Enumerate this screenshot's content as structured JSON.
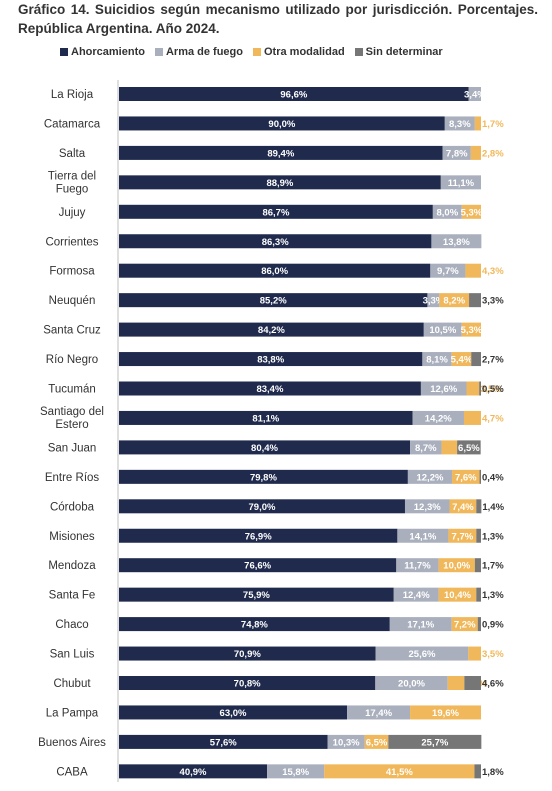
{
  "title": "Gráfico 14. Suicidios según mecanismo utilizado por jurisdicción. Porcentajes. República Argentina. Año 2024.",
  "chart_data": {
    "type": "bar",
    "orientation": "horizontal",
    "stacked": true,
    "title": "Gráfico 14. Suicidios según mecanismo utilizado por jurisdicción. Porcentajes. República Argentina. Año 2024.",
    "xlim": [
      0,
      100
    ],
    "legend_position": "top",
    "categories": [
      "La Rioja",
      "Catamarca",
      "Salta",
      "Tierra del Fuego",
      "Jujuy",
      "Corrientes",
      "Formosa",
      "Neuquén",
      "Santa Cruz",
      "Río Negro",
      "Tucumán",
      "Santiago del Estero",
      "San Juan",
      "Entre Ríos",
      "Córdoba",
      "Misiones",
      "Mendoza",
      "Santa Fe",
      "Chaco",
      "San Luis",
      "Chubut",
      "La Pampa",
      "Buenos Aires",
      "CABA"
    ],
    "category_lines": [
      [
        "La Rioja"
      ],
      [
        "Catamarca"
      ],
      [
        "Salta"
      ],
      [
        "Tierra del",
        "Fuego"
      ],
      [
        "Jujuy"
      ],
      [
        "Corrientes"
      ],
      [
        "Formosa"
      ],
      [
        "Neuquén"
      ],
      [
        "Santa Cruz"
      ],
      [
        "Río Negro"
      ],
      [
        "Tucumán"
      ],
      [
        "Santiago del",
        "Estero"
      ],
      [
        "San Juan"
      ],
      [
        "Entre Ríos"
      ],
      [
        "Córdoba"
      ],
      [
        "Misiones"
      ],
      [
        "Mendoza"
      ],
      [
        "Santa Fe"
      ],
      [
        "Chaco"
      ],
      [
        "San Luis"
      ],
      [
        "Chubut"
      ],
      [
        "La Pampa"
      ],
      [
        "Buenos Aires"
      ],
      [
        "CABA"
      ]
    ],
    "series": [
      {
        "name": "Ahorcamiento",
        "color": "#1f2a4d",
        "values": [
          96.6,
          90.0,
          89.4,
          88.9,
          86.7,
          86.3,
          86.0,
          85.2,
          84.2,
          83.8,
          83.4,
          81.1,
          80.4,
          79.8,
          79.0,
          76.9,
          76.6,
          75.9,
          74.8,
          70.9,
          70.8,
          63.0,
          57.6,
          40.9
        ],
        "labels": [
          "96,6%",
          "90,0%",
          "89,4%",
          "88,9%",
          "86,7%",
          "86,3%",
          "86,0%",
          "85,2%",
          "84,2%",
          "83,8%",
          "83,4%",
          "81,1%",
          "80,4%",
          "79,8%",
          "79,0%",
          "76,9%",
          "76,6%",
          "75,9%",
          "74,8%",
          "70,9%",
          "70,8%",
          "63,0%",
          "57,6%",
          "40,9%"
        ]
      },
      {
        "name": "Arma de fuego",
        "color": "#a9afbd",
        "values": [
          3.4,
          8.3,
          7.8,
          11.1,
          8.0,
          13.8,
          9.7,
          3.3,
          10.5,
          8.1,
          12.6,
          14.2,
          8.7,
          12.2,
          12.3,
          14.1,
          11.7,
          12.4,
          17.1,
          25.6,
          20.0,
          17.4,
          10.3,
          15.8
        ],
        "labels": [
          "3,4%",
          "8,3%",
          "7,8%",
          "11,1%",
          "8,0%",
          "13,8%",
          "9,7%",
          "3,3%",
          "10,5%",
          "8,1%",
          "12,6%",
          "14,2%",
          "8,7%",
          "12,2%",
          "12,3%",
          "14,1%",
          "11,7%",
          "12,4%",
          "17,1%",
          "25,6%",
          "20,0%",
          "17,4%",
          "10,3%",
          "15,8%"
        ]
      },
      {
        "name": "Otra modalidad",
        "color": "#f0b85a",
        "values": [
          0,
          1.7,
          2.8,
          0,
          5.3,
          0,
          4.3,
          8.2,
          5.3,
          5.4,
          3.5,
          4.7,
          4.3,
          7.6,
          7.4,
          7.7,
          10.0,
          10.4,
          7.2,
          3.5,
          4.6,
          19.6,
          6.5,
          41.5
        ],
        "labels": [
          "",
          "1,7%",
          "2,8%",
          "",
          "5,3%",
          "",
          "4,3%",
          "8,2%",
          "5,3%",
          "5,4%",
          "3,5%",
          "4,7%",
          "4,3%",
          "7,6%",
          "7,4%",
          "7,7%",
          "10,0%",
          "10,4%",
          "7,2%",
          "3,5%",
          "4,6%",
          "19,6%",
          "6,5%",
          "41,5%"
        ]
      },
      {
        "name": "Sin determinar",
        "color": "#767676",
        "values": [
          0,
          0,
          0,
          0,
          0,
          0,
          0,
          3.3,
          0,
          2.7,
          0.5,
          0,
          6.5,
          0.4,
          1.4,
          1.3,
          1.7,
          1.3,
          0.9,
          0,
          4.6,
          0,
          25.7,
          1.8
        ],
        "labels": [
          "",
          "",
          "",
          "",
          "",
          "",
          "",
          "3,3%",
          "",
          "2,7%",
          "0,5%",
          "",
          "6,5%",
          "0,4%",
          "1,4%",
          "1,3%",
          "1,7%",
          "1,3%",
          "0,9%",
          "",
          "4,6%",
          "",
          "25,7%",
          "1,8%"
        ]
      }
    ]
  }
}
